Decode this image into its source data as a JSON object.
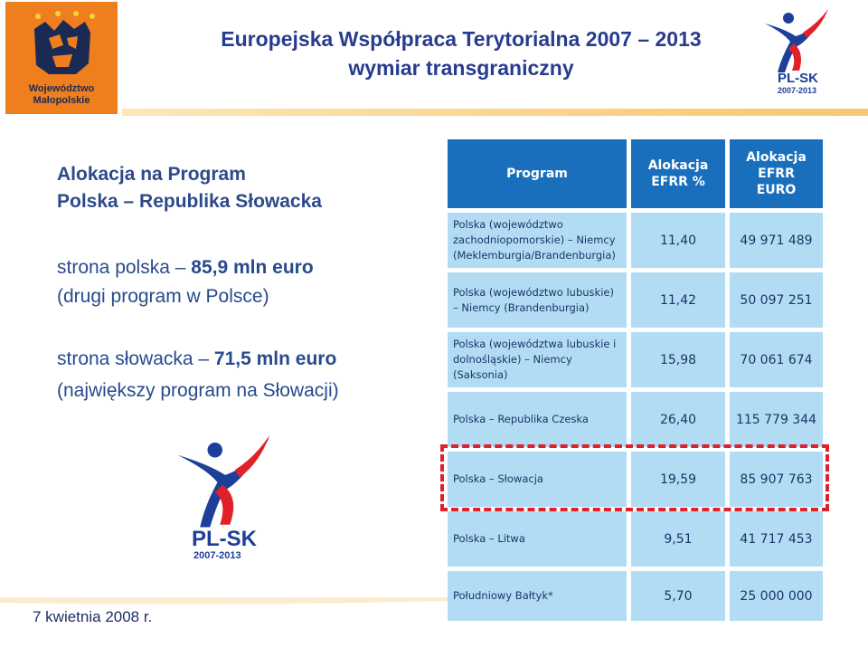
{
  "logo": {
    "line1": "Województwo",
    "line2": "Małopolskie"
  },
  "header": {
    "title_line1": "Europejska Współpraca Terytorialna 2007 – 2013",
    "title_line2": "wymiar transgraniczny"
  },
  "plsk_logo": {
    "text": "PL-SK",
    "years": "2007-2013"
  },
  "left": {
    "title_line1": "Alokacja na Program",
    "title_line2": "Polska – Republika Słowacka",
    "pl_prefix": "strona polska – ",
    "pl_value": "85,9 mln euro",
    "pl_note": "(drugi program w Polsce)",
    "sk_prefix": "strona słowacka – ",
    "sk_value": "71,5 mln euro",
    "sk_note": "(największy program na Słowacji)"
  },
  "table": {
    "headers": [
      "Program",
      "Alokacja EFRR %",
      "Alokacja EFRR EURO"
    ],
    "rows": [
      {
        "program": "Polska (województwo zachodniopomorskie) – Niemcy (Meklemburgia/Brandenburgia)",
        "percent": "11,40",
        "euro": "49 971 489"
      },
      {
        "program": "Polska (województwo lubuskie) – Niemcy (Brandenburgia)",
        "percent": "11,42",
        "euro": "50 097 251"
      },
      {
        "program": "Polska (województwa lubuskie i dolnośląskie) – Niemcy (Saksonia)",
        "percent": "15,98",
        "euro": "70 061 674"
      },
      {
        "program": "Polska – Republika Czeska",
        "percent": "26,40",
        "euro": "115 779 344"
      },
      {
        "program": "Polska – Słowacja",
        "percent": "19,59",
        "euro": "85 907 763"
      },
      {
        "program": "Polska – Litwa",
        "percent": "9,51",
        "euro": "41 717 453"
      },
      {
        "program": "Południowy Bałtyk*",
        "percent": "5,70",
        "euro": "25 000 000"
      }
    ]
  },
  "footer": {
    "date": "7 kwietnia 2008 r."
  },
  "colors": {
    "header_blue": "#1a6fbd",
    "cell_blue": "#b2dcf4",
    "highlight_red": "#e0212a",
    "orange": "#ee7e1e"
  }
}
